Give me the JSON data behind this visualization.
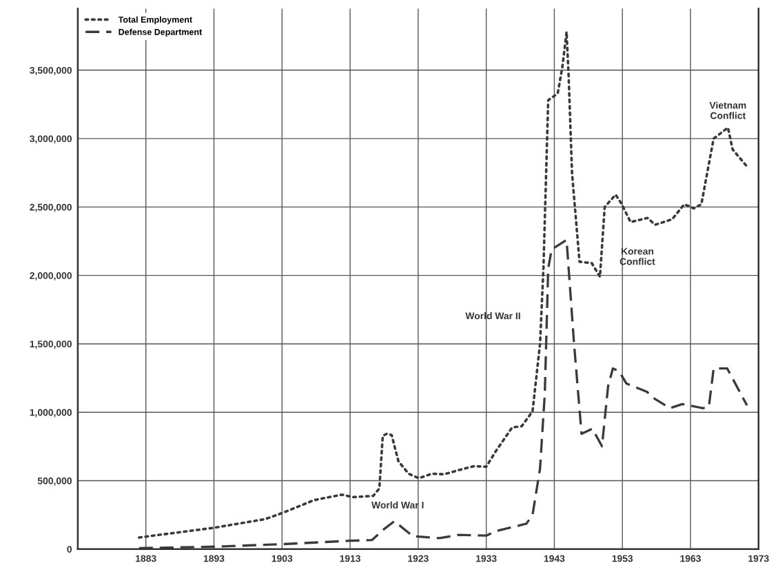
{
  "chart_data": {
    "type": "line",
    "xlim": [
      1873,
      1973
    ],
    "xticks": [
      1883,
      1893,
      1903,
      1913,
      1923,
      1933,
      1943,
      1953,
      1963,
      1973
    ],
    "ylim": [
      0,
      3950000
    ],
    "yticks": [
      {
        "value": 0,
        "label": "0"
      },
      {
        "value": 500000,
        "label": "500,000"
      },
      {
        "value": 1000000,
        "label": "1,000,000"
      },
      {
        "value": 1500000,
        "label": "1,500,000"
      },
      {
        "value": 2000000,
        "label": "2,000,000"
      },
      {
        "value": 2500000,
        "label": "2,500,000"
      },
      {
        "value": 3000000,
        "label": "3,000,000"
      },
      {
        "value": 3500000,
        "label": "3,500,000"
      }
    ],
    "grid": true,
    "legend": "top left",
    "marker": "none",
    "series": [
      {
        "name": "Total Employment",
        "color": "#3a3a3a",
        "line_style": "dotted",
        "x": [
          1882,
          1893,
          1900.5,
          1903,
          1907.7,
          1911.8,
          1913.4,
          1916.4,
          1917.3,
          1917.8,
          1918.4,
          1919.1,
          1920.1,
          1921.6,
          1923.1,
          1925,
          1926.8,
          1929,
          1931.2,
          1933,
          1934.4,
          1936.8,
          1938.2,
          1939.8,
          1940.9,
          1941.4,
          1942.1,
          1943.5,
          1944.2,
          1944.8,
          1945.1,
          1945.6,
          1946.7,
          1948.5,
          1949.7,
          1950.4,
          1952,
          1952.8,
          1954.2,
          1956.7,
          1957.8,
          1960.3,
          1962.1,
          1963.5,
          1964.6,
          1966.4,
          1968.5,
          1969.2,
          1971.4
        ],
        "values": [
          85000,
          156000,
          219000,
          263000,
          358000,
          398000,
          380000,
          389000,
          443000,
          828000,
          843000,
          834000,
          642000,
          551000,
          518000,
          551000,
          547000,
          578000,
          606000,
          602000,
          715000,
          889000,
          898000,
          1007000,
          1500000,
          2050000,
          3280000,
          3330000,
          3530000,
          3780000,
          3460000,
          2750000,
          2100000,
          2090000,
          1990000,
          2500000,
          2590000,
          2530000,
          2390000,
          2420000,
          2370000,
          2410000,
          2520000,
          2490000,
          2520000,
          3000000,
          3080000,
          2920000,
          2790000
        ]
      },
      {
        "name": "Defense Department",
        "color": "#3a3a3a",
        "line_style": "dashed",
        "x": [
          1882,
          1893,
          1903,
          1913,
          1916.2,
          1918,
          1919.5,
          1922.2,
          1926.1,
          1929,
          1933,
          1934.4,
          1938.9,
          1939.8,
          1940.9,
          1941.6,
          1942.1,
          1942.6,
          1944.8,
          1945.9,
          1947,
          1948.6,
          1950,
          1950.9,
          1951.6,
          1952.5,
          1953.6,
          1956.6,
          1957.7,
          1960,
          1961.8,
          1964.8,
          1965.7,
          1966.4,
          1968.4,
          1971.3
        ],
        "values": [
          7000,
          18000,
          36000,
          61000,
          66000,
          147000,
          204000,
          95000,
          80000,
          104000,
          99000,
          131000,
          186000,
          250000,
          588000,
          1135000,
          2050000,
          2190000,
          2260000,
          1500000,
          843000,
          880000,
          752000,
          1190000,
          1320000,
          1300000,
          1210000,
          1150000,
          1100000,
          1030000,
          1060000,
          1030000,
          1040000,
          1320000,
          1320000,
          1050000
        ]
      }
    ],
    "annotations": [
      "World War I",
      "World War II",
      "Korean\nConflict",
      "Vietnam\nConflict"
    ]
  }
}
